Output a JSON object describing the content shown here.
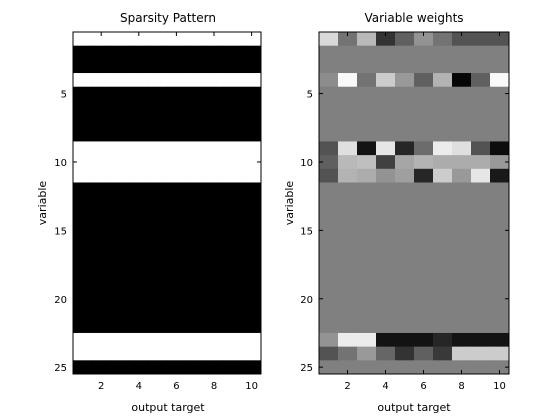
{
  "chart_data": [
    {
      "type": "heatmap",
      "title": "Sparsity Pattern",
      "xlabel": "output target",
      "ylabel": "variable",
      "x_categories": [
        1,
        2,
        3,
        4,
        5,
        6,
        7,
        8,
        9,
        10
      ],
      "y_categories": [
        1,
        2,
        3,
        4,
        5,
        6,
        7,
        8,
        9,
        10,
        11,
        12,
        13,
        14,
        15,
        16,
        17,
        18,
        19,
        20,
        21,
        22,
        23,
        24,
        25
      ],
      "x_ticks": [
        2,
        4,
        6,
        8,
        10
      ],
      "y_ticks": [
        5,
        10,
        15,
        20,
        25
      ],
      "colormap": "gray",
      "row_active": [
        1,
        0,
        0,
        1,
        0,
        0,
        0,
        0,
        1,
        1,
        1,
        0,
        0,
        0,
        0,
        0,
        0,
        0,
        0,
        0,
        0,
        0,
        1,
        1,
        0
      ],
      "values_note_active_is_white": true
    },
    {
      "type": "heatmap",
      "title": "Variable weights",
      "xlabel": "output target",
      "ylabel": "variable",
      "x_categories": [
        1,
        2,
        3,
        4,
        5,
        6,
        7,
        8,
        9,
        10
      ],
      "y_categories": [
        1,
        2,
        3,
        4,
        5,
        6,
        7,
        8,
        9,
        10,
        11,
        12,
        13,
        14,
        15,
        16,
        17,
        18,
        19,
        20,
        21,
        22,
        23,
        24,
        25
      ],
      "x_ticks": [
        2,
        4,
        6,
        8,
        10
      ],
      "y_ticks": [
        5,
        10,
        15,
        20,
        25
      ],
      "colormap": "gray",
      "clim": [
        -1,
        1
      ],
      "values": [
        [
          0.7,
          -0.1,
          0.45,
          -0.6,
          -0.25,
          0.15,
          -0.1,
          -0.35,
          -0.35,
          -0.35
        ],
        [
          0,
          0,
          0,
          0,
          0,
          0,
          0,
          0,
          0,
          0
        ],
        [
          0,
          0,
          0,
          0,
          0,
          0,
          0,
          0,
          0,
          0
        ],
        [
          0.1,
          0.95,
          -0.1,
          0.6,
          0.2,
          -0.25,
          0.4,
          -0.95,
          -0.25,
          0.95
        ],
        [
          0,
          0,
          0,
          0,
          0,
          0,
          0,
          0,
          0,
          0
        ],
        [
          0,
          0,
          0,
          0,
          0,
          0,
          0,
          0,
          0,
          0
        ],
        [
          0,
          0,
          0,
          0,
          0,
          0,
          0,
          0,
          0,
          0
        ],
        [
          0,
          0,
          0,
          0,
          0,
          0,
          0,
          0,
          0,
          0
        ],
        [
          -0.35,
          0.75,
          -0.85,
          0.8,
          -0.7,
          -0.15,
          0.85,
          0.75,
          -0.35,
          -0.9
        ],
        [
          -0.25,
          0.45,
          0.5,
          -0.5,
          0.3,
          0.4,
          0.35,
          0.35,
          0.35,
          0.2
        ],
        [
          -0.35,
          0.4,
          0.35,
          0.15,
          0.25,
          -0.7,
          0.6,
          0.2,
          0.8,
          -0.8
        ],
        [
          0,
          0,
          0,
          0,
          0,
          0,
          0,
          0,
          0,
          0
        ],
        [
          0,
          0,
          0,
          0,
          0,
          0,
          0,
          0,
          0,
          0
        ],
        [
          0,
          0,
          0,
          0,
          0,
          0,
          0,
          0,
          0,
          0
        ],
        [
          0,
          0,
          0,
          0,
          0,
          0,
          0,
          0,
          0,
          0
        ],
        [
          0,
          0,
          0,
          0,
          0,
          0,
          0,
          0,
          0,
          0
        ],
        [
          0,
          0,
          0,
          0,
          0,
          0,
          0,
          0,
          0,
          0
        ],
        [
          0,
          0,
          0,
          0,
          0,
          0,
          0,
          0,
          0,
          0
        ],
        [
          0,
          0,
          0,
          0,
          0,
          0,
          0,
          0,
          0,
          0
        ],
        [
          0,
          0,
          0,
          0,
          0,
          0,
          0,
          0,
          0,
          0
        ],
        [
          0,
          0,
          0,
          0,
          0,
          0,
          0,
          0,
          0,
          0
        ],
        [
          0,
          0,
          0,
          0,
          0,
          0,
          0,
          0,
          0,
          0
        ],
        [
          0.15,
          0.85,
          0.85,
          -0.85,
          -0.85,
          -0.85,
          -0.7,
          -0.85,
          -0.85,
          -0.85
        ],
        [
          -0.35,
          -0.1,
          0.2,
          -0.2,
          -0.6,
          -0.25,
          -0.55,
          0.6,
          0.6,
          0.6
        ],
        [
          0,
          0,
          0,
          0,
          0,
          0,
          0,
          0,
          0,
          0
        ]
      ]
    }
  ]
}
